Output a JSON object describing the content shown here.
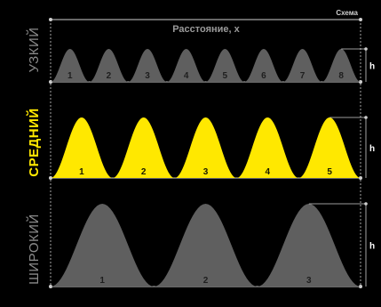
{
  "header": {
    "scheme_label": "Схема",
    "axis_title": "Расстояние, x"
  },
  "colors": {
    "background": "#000000",
    "gray_peak": "#5f5f5f",
    "yellow_peak": "#ffe800",
    "line": "#cfcfcf",
    "label_gray": "#8a8a8a",
    "label_yellow": "#ffe800",
    "num_gray": "#1e1e1e",
    "num_yellow": "#1a1a00"
  },
  "rows": [
    {
      "id": "narrow",
      "label": "УЗКИЙ",
      "style": "gray",
      "height_label": "h",
      "peaks": [
        "1",
        "2",
        "3",
        "4",
        "5",
        "6",
        "7",
        "8"
      ]
    },
    {
      "id": "medium",
      "label": "СРЕДНИЙ",
      "style": "yellow",
      "height_label": "h",
      "peaks": [
        "1",
        "2",
        "3",
        "4",
        "5"
      ]
    },
    {
      "id": "wide",
      "label": "ШИРОКИЙ",
      "style": "gray",
      "height_label": "h",
      "peaks": [
        "1",
        "2",
        "3"
      ]
    }
  ]
}
